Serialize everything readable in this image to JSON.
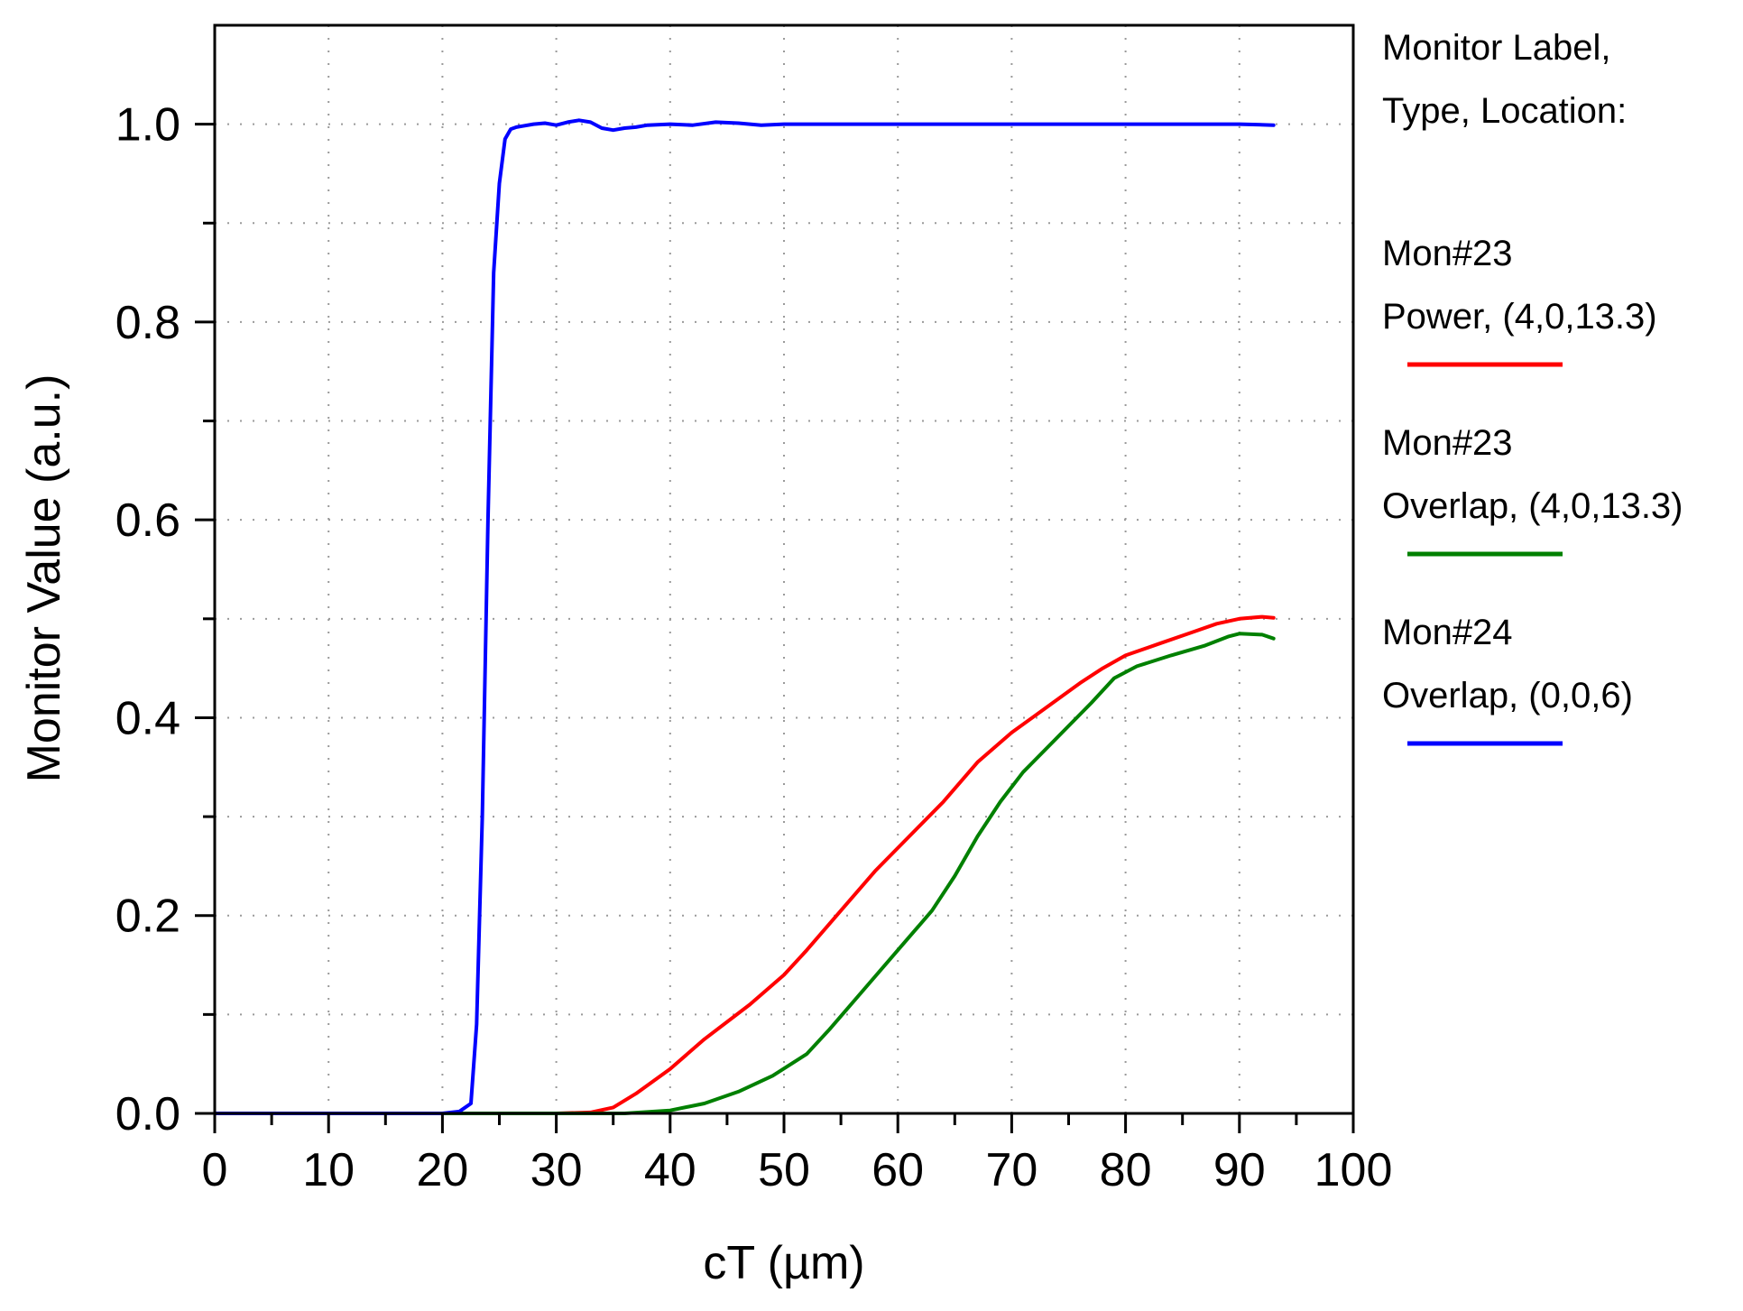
{
  "chart_data": {
    "type": "line",
    "xlabel": "cT (µm)",
    "ylabel": "Monitor Value (a.u.)",
    "xlim": [
      0,
      100
    ],
    "ylim": [
      0,
      1.1
    ],
    "x_ticks": [
      "0",
      "10",
      "20",
      "30",
      "40",
      "50",
      "60",
      "70",
      "80",
      "90",
      "100"
    ],
    "y_ticks": [
      "0.0",
      "0.2",
      "0.4",
      "0.6",
      "0.8",
      "1.0"
    ],
    "grid": true,
    "legend": {
      "title_lines": [
        "Monitor Label,",
        "Type, Location:"
      ],
      "placement": "right"
    },
    "series": [
      {
        "name_lines": [
          "Mon#23",
          "Power, (4,0,13.3)"
        ],
        "color": "#ff0000",
        "x": [
          0,
          30,
          33,
          35,
          37,
          40,
          43,
          47,
          50,
          52,
          55,
          58,
          61,
          64,
          67,
          70,
          73,
          76,
          78,
          80,
          83,
          86,
          88,
          90,
          92,
          93
        ],
        "y": [
          0,
          0,
          0.001,
          0.006,
          0.02,
          0.045,
          0.075,
          0.11,
          0.14,
          0.165,
          0.205,
          0.245,
          0.28,
          0.315,
          0.355,
          0.385,
          0.41,
          0.435,
          0.45,
          0.463,
          0.475,
          0.487,
          0.495,
          0.5,
          0.502,
          0.501
        ]
      },
      {
        "name_lines": [
          "Mon#23",
          "Overlap, (4,0,13.3)"
        ],
        "color": "#008000",
        "x": [
          0,
          36,
          40,
          43,
          46,
          49,
          52,
          54,
          57,
          60,
          63,
          65,
          67,
          69,
          71,
          74,
          77,
          79,
          81,
          84,
          87,
          89,
          90,
          92,
          93
        ],
        "y": [
          0,
          0,
          0.003,
          0.01,
          0.022,
          0.038,
          0.06,
          0.085,
          0.125,
          0.165,
          0.205,
          0.24,
          0.28,
          0.315,
          0.345,
          0.38,
          0.415,
          0.44,
          0.452,
          0.463,
          0.473,
          0.482,
          0.485,
          0.484,
          0.48
        ]
      },
      {
        "name_lines": [
          "Mon#24",
          "Overlap, (0,0,6)"
        ],
        "color": "#0000ff",
        "x": [
          0,
          20,
          21.5,
          22.5,
          23,
          23.5,
          24,
          24.5,
          25,
          25.5,
          26,
          26.5,
          27,
          28,
          29,
          30,
          31,
          32,
          33,
          34,
          35,
          36,
          37,
          38,
          40,
          42,
          44,
          46,
          48,
          50,
          55,
          60,
          70,
          80,
          90,
          93
        ],
        "y": [
          0,
          0,
          0.002,
          0.01,
          0.09,
          0.3,
          0.6,
          0.85,
          0.94,
          0.985,
          0.995,
          0.997,
          0.998,
          1.0,
          1.001,
          0.999,
          1.002,
          1.004,
          1.002,
          0.996,
          0.994,
          0.996,
          0.997,
          0.999,
          1.0,
          0.999,
          1.002,
          1.001,
          0.999,
          1.0,
          1.0,
          1.0,
          1.0,
          1.0,
          1.0,
          0.999
        ]
      }
    ]
  }
}
